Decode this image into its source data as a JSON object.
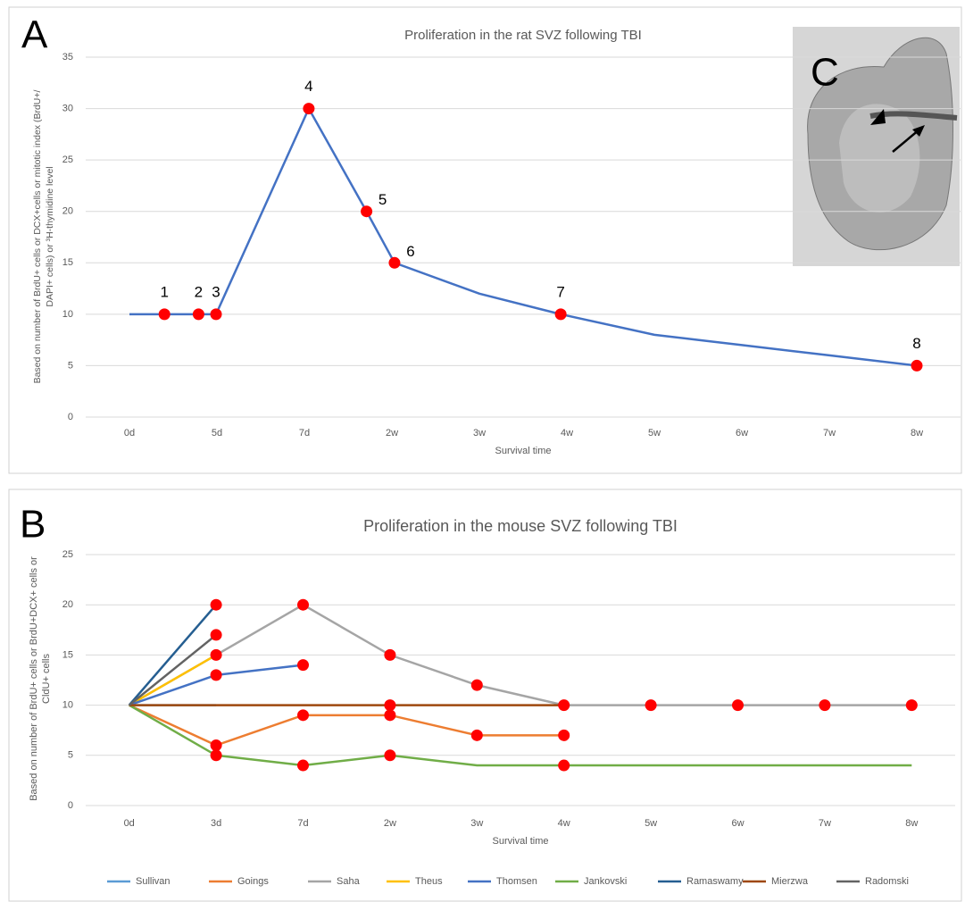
{
  "figure": {
    "panel_a": "A",
    "panel_b": "B",
    "panel_c": "C"
  },
  "chart_data": [
    {
      "type": "line",
      "title": "Proliferation in the rat SVZ following TBI",
      "xlabel": "Survival time",
      "ylabel": [
        "Based on number of  BrdU+ cells or DCX+cells or mitotic index (BrdU+/",
        "DAPI+ cells) or ³H-thymidine level"
      ],
      "x": [
        0,
        0.4,
        0.79,
        0.99,
        2.05,
        2.71,
        3.03,
        4,
        4.93,
        6,
        7,
        8,
        9
      ],
      "values": [
        10,
        10,
        10,
        10,
        30,
        20,
        15,
        12,
        10,
        8,
        7,
        6,
        5
      ],
      "marker_labels": [
        null,
        "1",
        "2",
        "3",
        "4",
        "5",
        "6",
        null,
        "7",
        null,
        null,
        null,
        "8"
      ],
      "color": "#4472c4",
      "marker_color": "#ff0000",
      "xlim": [
        -0.5,
        9.5
      ],
      "xticks": [
        {
          "value": 0,
          "label": "0d"
        },
        {
          "value": 1,
          "label": "5d"
        },
        {
          "value": 2,
          "label": "7d"
        },
        {
          "value": 3,
          "label": "2w"
        },
        {
          "value": 4,
          "label": "3w"
        },
        {
          "value": 5,
          "label": "4w"
        },
        {
          "value": 6,
          "label": "5w"
        },
        {
          "value": 7,
          "label": "6w"
        },
        {
          "value": 8,
          "label": "7w"
        },
        {
          "value": 9,
          "label": "8w"
        }
      ],
      "ylim": [
        0,
        35
      ],
      "yticks": [
        0,
        5,
        10,
        15,
        20,
        25,
        30,
        35
      ],
      "grid": true
    },
    {
      "type": "line",
      "title": "Proliferation in the mouse SVZ following TBI",
      "xlabel": "Survival time",
      "ylabel": [
        "Based on number of BrdU+ cells or BrdU+DCX+ cells  or",
        "CldU+ cells"
      ],
      "categories": [
        "0d",
        "3d",
        "7d",
        "2w",
        "3w",
        "4w",
        "5w",
        "6w",
        "7w",
        "8w"
      ],
      "marker_color": "#ff0000",
      "series": [
        {
          "name": "Sullivan",
          "color": "#5b9bd5",
          "values": [
            10,
            10,
            null,
            null,
            null,
            null,
            null,
            null,
            null,
            null
          ],
          "markers": [
            false,
            false,
            false,
            false,
            false,
            false,
            false,
            false,
            false,
            false
          ]
        },
        {
          "name": "Goings",
          "color": "#ed7d31",
          "values": [
            10,
            6,
            9,
            9,
            7,
            7,
            null,
            null,
            null,
            null
          ],
          "markers": [
            false,
            true,
            true,
            true,
            true,
            true,
            false,
            false,
            false,
            false
          ]
        },
        {
          "name": "Saha",
          "color": "#a5a5a5",
          "values": [
            10,
            15,
            20,
            15,
            12,
            10,
            10,
            10,
            10,
            10
          ],
          "markers": [
            false,
            false,
            true,
            true,
            true,
            true,
            true,
            true,
            true,
            true
          ]
        },
        {
          "name": "Theus",
          "color": "#ffc000",
          "values": [
            10,
            15,
            null,
            null,
            null,
            null,
            null,
            null,
            null,
            null
          ],
          "markers": [
            false,
            true,
            false,
            false,
            false,
            false,
            false,
            false,
            false,
            false
          ]
        },
        {
          "name": "Thomsen",
          "color": "#4472c4",
          "values": [
            10,
            13,
            14,
            null,
            null,
            null,
            null,
            null,
            null,
            null
          ],
          "markers": [
            false,
            true,
            true,
            false,
            false,
            false,
            false,
            false,
            false,
            false
          ]
        },
        {
          "name": "Jankovski",
          "color": "#70ad47",
          "values": [
            10,
            5,
            4,
            5,
            4,
            4,
            4,
            4,
            4,
            4
          ],
          "markers": [
            false,
            true,
            true,
            true,
            false,
            true,
            false,
            false,
            false,
            false
          ]
        },
        {
          "name": "Ramaswamy",
          "color": "#255e91",
          "values": [
            10,
            20,
            null,
            null,
            null,
            null,
            null,
            null,
            null,
            null
          ],
          "markers": [
            false,
            true,
            false,
            false,
            false,
            false,
            false,
            false,
            false,
            false
          ]
        },
        {
          "name": "Mierzwa",
          "color": "#9e480e",
          "values": [
            10,
            10,
            10,
            10,
            10,
            10,
            null,
            null,
            null,
            null
          ],
          "markers": [
            false,
            false,
            false,
            true,
            false,
            false,
            false,
            false,
            false,
            false
          ]
        },
        {
          "name": "Radomski",
          "color": "#636363",
          "values": [
            10,
            17,
            null,
            null,
            null,
            null,
            null,
            null,
            null,
            null
          ],
          "markers": [
            false,
            true,
            false,
            false,
            false,
            false,
            false,
            false,
            false,
            false
          ]
        }
      ],
      "ylim": [
        0,
        25
      ],
      "yticks": [
        0,
        5,
        10,
        15,
        20,
        25
      ],
      "grid": true,
      "legend": "bottom"
    }
  ]
}
